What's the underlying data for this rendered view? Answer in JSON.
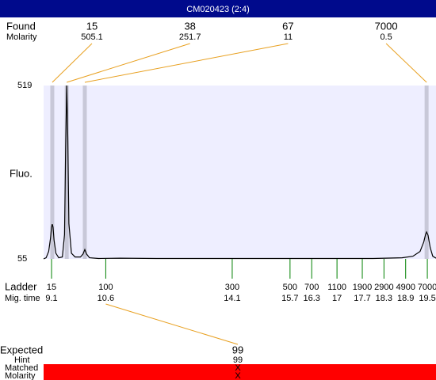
{
  "chart_data": {
    "type": "electropherogram",
    "title": "CM020423 (2:4)",
    "found_label": "Found",
    "molarity_label": "Molarity",
    "y_label": "Fluo.",
    "ylim": [
      55,
      519
    ],
    "yticks": [
      55,
      519
    ],
    "xlim": [
      8.88,
      19.74
    ],
    "trace": {
      "color": "#000000",
      "x": [
        8.88,
        8.95,
        9.02,
        9.07,
        9.1,
        9.12,
        9.14,
        9.17,
        9.22,
        9.3,
        9.4,
        9.46,
        9.49,
        9.52,
        9.55,
        9.58,
        9.65,
        9.75,
        9.9,
        9.97,
        10.02,
        10.07,
        10.15,
        10.4,
        11,
        12,
        13,
        14,
        15,
        16,
        17,
        18,
        18.8,
        19.1,
        19.3,
        19.4,
        19.45,
        19.48,
        19.52,
        19.58,
        19.65,
        19.74
      ],
      "y": [
        55,
        58,
        75,
        110,
        140,
        148,
        140,
        105,
        70,
        58,
        60,
        120,
        350,
        519,
        380,
        150,
        70,
        60,
        60,
        68,
        80,
        68,
        58,
        56,
        57,
        56,
        56,
        56,
        56,
        56,
        56,
        56,
        58,
        62,
        75,
        100,
        120,
        127,
        118,
        85,
        62,
        57
      ]
    },
    "found": [
      {
        "size": 15,
        "molarity": 505.1,
        "time": 9.12
      },
      {
        "size": 38,
        "molarity": 251.7,
        "time": 9.52
      },
      {
        "size": 67,
        "molarity": 11,
        "time": 10.02
      },
      {
        "size": 7000,
        "molarity": 0.5,
        "time": 19.48
      }
    ],
    "ladder_label": "Ladder",
    "time_label": "Mig. time",
    "ladder": {
      "sizes": [
        15,
        100,
        300,
        500,
        700,
        1100,
        1900,
        2900,
        4900,
        7000
      ],
      "times": [
        9.1,
        10.6,
        14.1,
        15.7,
        16.3,
        17,
        17.7,
        18.3,
        18.9,
        19.5
      ]
    },
    "expected": {
      "label": "Expected",
      "value": 99,
      "hint_label": "Hint",
      "hint": 99,
      "matched_label": "Matched",
      "matched": "X",
      "molarity_label": "Molarity",
      "molarity": "X"
    }
  }
}
